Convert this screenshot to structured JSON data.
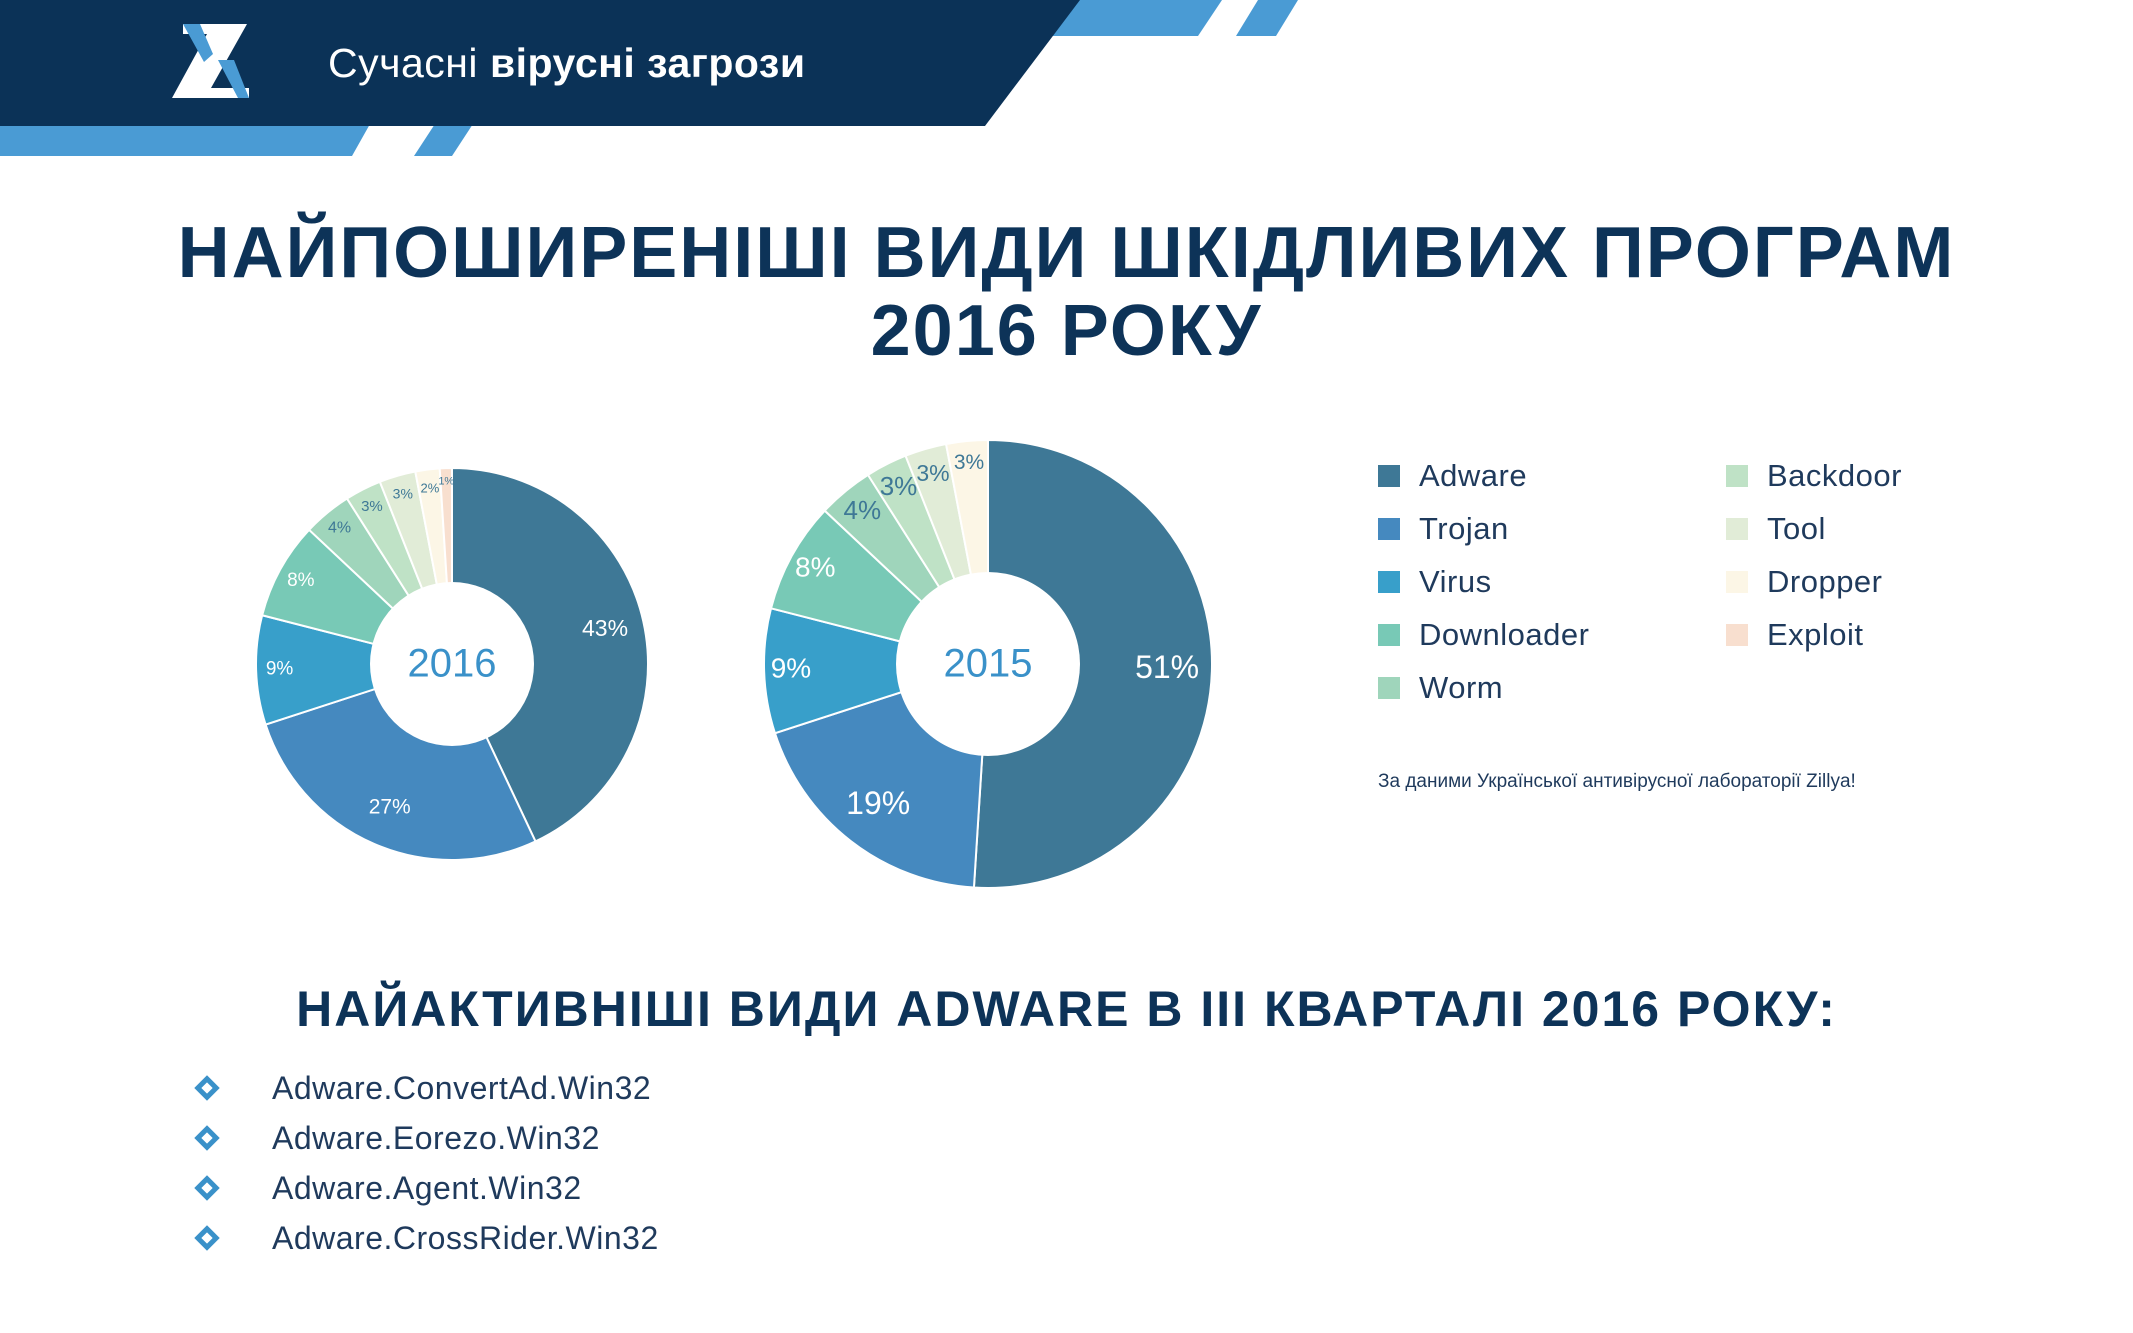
{
  "header": {
    "title_plain": "Сучасні",
    "title_bold": "вірусні загрози"
  },
  "title": {
    "line1": "НАЙПОШИРЕНІШІ ВИДИ ШКІДЛИВИХ ПРОГРАМ",
    "line2": "2016 РОКУ"
  },
  "colors": {
    "navy": "#0b3257",
    "accent_blue": "#4a9bd4",
    "Adware": "#3e7896",
    "Trojan": "#4589bf",
    "Virus": "#389fca",
    "Downloader": "#78c9b6",
    "Worm": "#9fd5bb",
    "Backdoor": "#bfe2c6",
    "Tool": "#e1ecd7",
    "Dropper": "#fcf6e6",
    "Exploit": "#f8dfcf"
  },
  "chart_data": [
    {
      "type": "pie",
      "variant": "donut",
      "center_label": "2016",
      "categories": [
        "Adware",
        "Trojan",
        "Virus",
        "Downloader",
        "Worm",
        "Backdoor",
        "Tool",
        "Dropper",
        "Exploit"
      ],
      "values": [
        43,
        27,
        9,
        8,
        4,
        3,
        3,
        2,
        1
      ],
      "labels": [
        "43%",
        "27%",
        "9%",
        "8%",
        "4%",
        "3%",
        "3%",
        "2%",
        "1%"
      ]
    },
    {
      "type": "pie",
      "variant": "donut",
      "center_label": "2015",
      "categories": [
        "Adware",
        "Trojan",
        "Virus",
        "Downloader",
        "Worm",
        "Backdoor",
        "Tool",
        "Dropper"
      ],
      "values": [
        51,
        19,
        9,
        8,
        4,
        3,
        3,
        3
      ],
      "labels": [
        "51%",
        "19%",
        "9%",
        "8%",
        "4%",
        "3%",
        "3%",
        "3%"
      ]
    }
  ],
  "legend": {
    "placement": "right",
    "items": [
      "Adware",
      "Trojan",
      "Virus",
      "Downloader",
      "Worm",
      "Backdoor",
      "Tool",
      "Dropper",
      "Exploit"
    ]
  },
  "source_note": "За даними Української антивірусної лабораторії Zillya!",
  "section2": {
    "title": "НАЙАКТИВНІШІ ВИДИ ADWARE В ІІІ КВАРТАЛІ 2016 РОКУ:",
    "items": [
      "Adware.ConvertAd.Win32",
      "Adware.Eorezo.Win32",
      "Adware.Agent.Win32",
      "Adware.CrossRider.Win32"
    ]
  }
}
